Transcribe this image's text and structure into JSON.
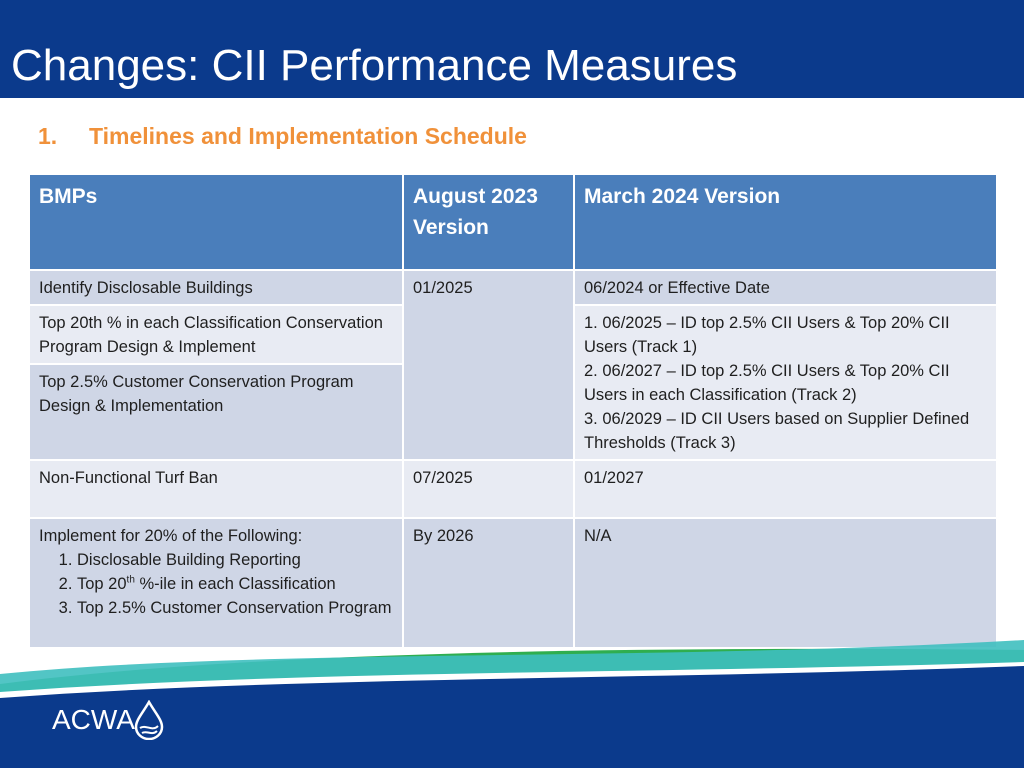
{
  "slide": {
    "title": "Changes: CII Performance Measures",
    "subheading_number": "1.",
    "subheading_text": "Timelines and Implementation Schedule"
  },
  "table": {
    "headers": {
      "col1": "BMPs",
      "col2": "August 2023 Version",
      "col3": "March 2024 Version"
    },
    "rows": {
      "r1": {
        "bmp": "Identify Disclosable Buildings",
        "aug": "01/2025",
        "mar": "06/2024 or Effective Date"
      },
      "r2": {
        "bmp": "Top 20th % in each Classification Conservation Program Design & Implement"
      },
      "r3": {
        "bmp": "Top 2.5% Customer Conservation Program Design & Implementation"
      },
      "r23_mar": [
        "1. 06/2025 – ID top 2.5% CII Users & Top 20% CII Users (Track 1)",
        "2. 06/2027 – ID top 2.5% CII Users & Top 20% CII Users in each Classification (Track 2)",
        "3. 06/2029 – ID CII Users based on Supplier Defined Thresholds (Track 3)"
      ],
      "r4": {
        "bmp": "Non-Functional Turf Ban",
        "aug": "07/2025",
        "mar": "01/2027"
      },
      "r5": {
        "bmp_intro": "Implement for 20% of the Following:",
        "item1": "Disclosable Building Reporting",
        "item2_pre": "Top 20",
        "item2_sup": "th",
        "item2_post": " %-ile in each Classification",
        "item3": "Top 2.5% Customer Conservation Program",
        "aug": "By 2026",
        "mar": "N/A"
      }
    }
  },
  "footer": {
    "logo_text": "ACWA",
    "logo_icon": "water-drop-icon",
    "colors": {
      "dark_blue": "#0b3a8c",
      "teal": "#3fbfbf",
      "green": "#2fae4f"
    }
  }
}
